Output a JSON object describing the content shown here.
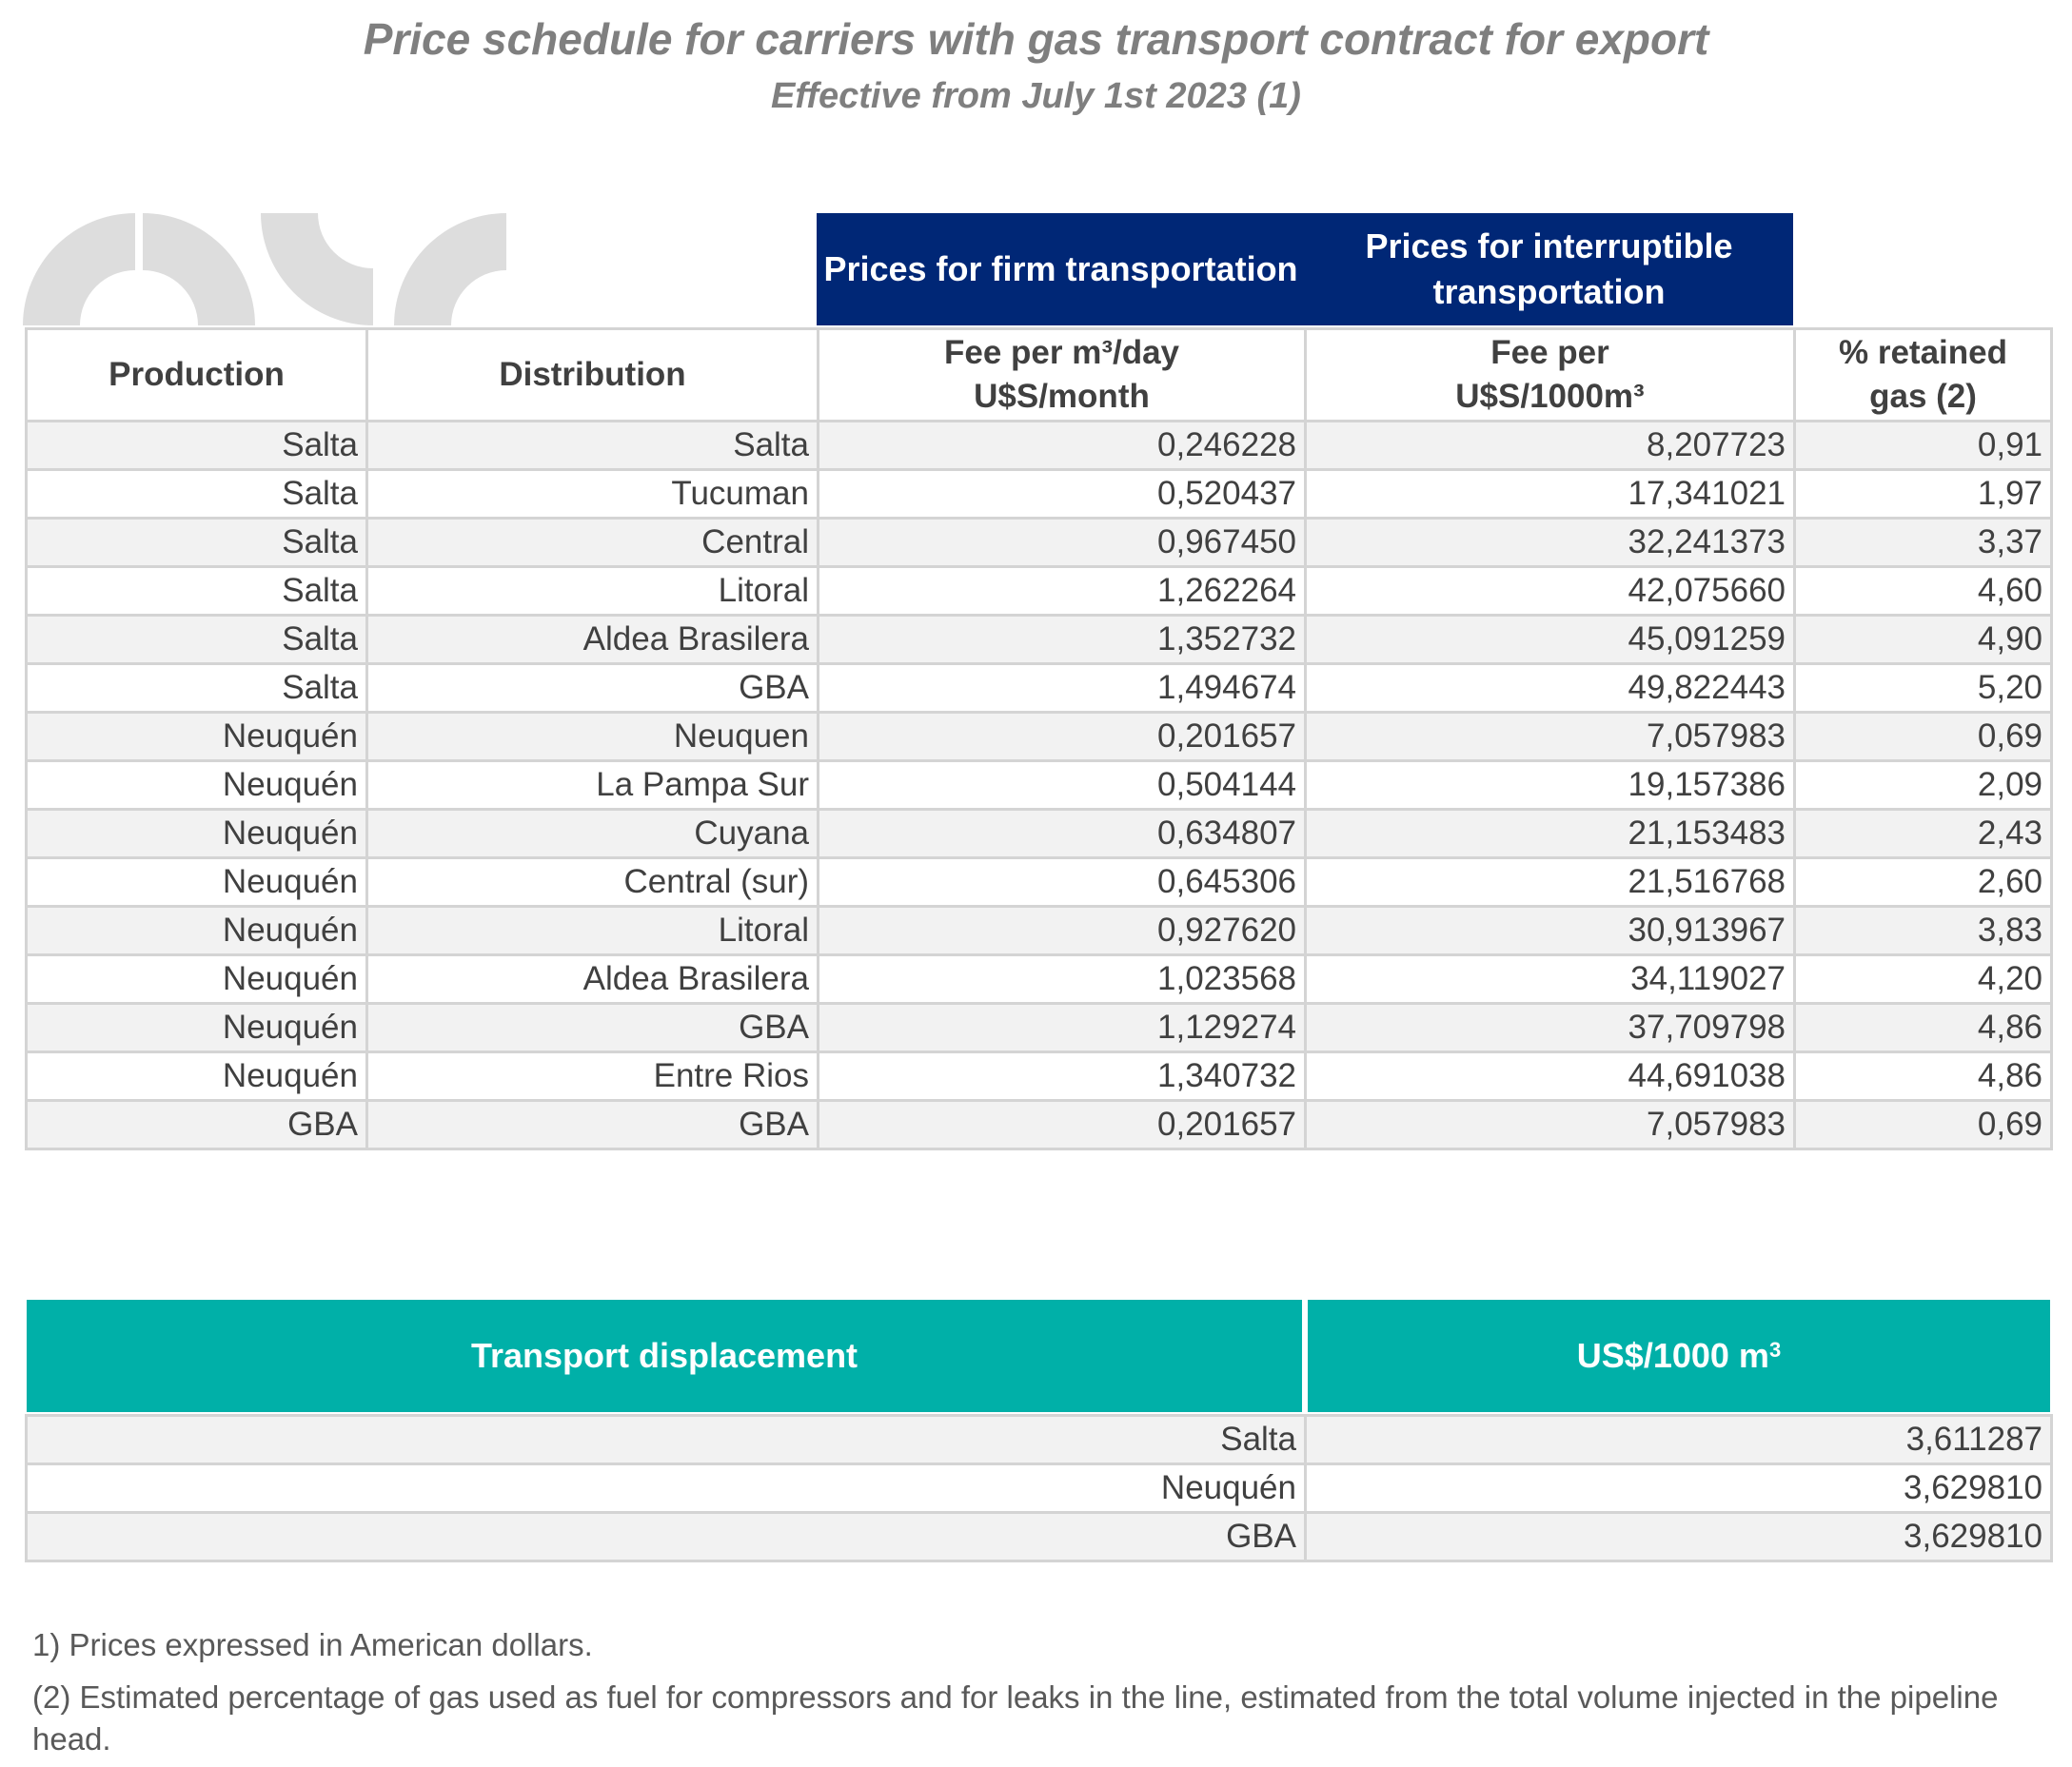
{
  "title": "Price schedule for carriers with gas transport contract for export",
  "subtitle": "Effective from July 1st 2023 (1)",
  "group_headers": {
    "firm": "Prices for firm transportation",
    "interruptible": "Prices for interruptible transportation"
  },
  "columns": {
    "production": "Production",
    "distribution": "Distribution",
    "fee_firm_line1": "Fee per m³/day",
    "fee_firm_line2": "U$S/month",
    "fee_int_line1": "Fee per",
    "fee_int_line2": "U$S/1000m³",
    "retained_line1": "% retained",
    "retained_line2": "gas (2)"
  },
  "rows": [
    {
      "production": "Salta",
      "distribution": "Salta",
      "firm": "0,246228",
      "interruptible": "8,207723",
      "retained": "0,91"
    },
    {
      "production": "Salta",
      "distribution": "Tucuman",
      "firm": "0,520437",
      "interruptible": "17,341021",
      "retained": "1,97"
    },
    {
      "production": "Salta",
      "distribution": "Central",
      "firm": "0,967450",
      "interruptible": "32,241373",
      "retained": "3,37"
    },
    {
      "production": "Salta",
      "distribution": "Litoral",
      "firm": "1,262264",
      "interruptible": "42,075660",
      "retained": "4,60"
    },
    {
      "production": "Salta",
      "distribution": "Aldea Brasilera",
      "firm": "1,352732",
      "interruptible": "45,091259",
      "retained": "4,90"
    },
    {
      "production": "Salta",
      "distribution": "GBA",
      "firm": "1,494674",
      "interruptible": "49,822443",
      "retained": "5,20"
    },
    {
      "production": "Neuquén",
      "distribution": "Neuquen",
      "firm": "0,201657",
      "interruptible": "7,057983",
      "retained": "0,69"
    },
    {
      "production": "Neuquén",
      "distribution": "La Pampa Sur",
      "firm": "0,504144",
      "interruptible": "19,157386",
      "retained": "2,09"
    },
    {
      "production": "Neuquén",
      "distribution": "Cuyana",
      "firm": "0,634807",
      "interruptible": "21,153483",
      "retained": "2,43"
    },
    {
      "production": "Neuquén",
      "distribution": "Central (sur)",
      "firm": "0,645306",
      "interruptible": "21,516768",
      "retained": "2,60"
    },
    {
      "production": "Neuquén",
      "distribution": "Litoral",
      "firm": "0,927620",
      "interruptible": "30,913967",
      "retained": "3,83"
    },
    {
      "production": "Neuquén",
      "distribution": "Aldea Brasilera",
      "firm": "1,023568",
      "interruptible": "34,119027",
      "retained": "4,20"
    },
    {
      "production": "Neuquén",
      "distribution": "GBA",
      "firm": "1,129274",
      "interruptible": "37,709798",
      "retained": "4,86"
    },
    {
      "production": "Neuquén",
      "distribution": "Entre Rios",
      "firm": "1,340732",
      "interruptible": "44,691038",
      "retained": "4,86"
    },
    {
      "production": "GBA",
      "distribution": "GBA",
      "firm": "0,201657",
      "interruptible": "7,057983",
      "retained": "0,69"
    }
  ],
  "displacement": {
    "header_label": "Transport displacement",
    "header_unit": "US$/1000 m",
    "header_unit_sup": "3",
    "rows": [
      {
        "name": "Salta",
        "value": "3,611287"
      },
      {
        "name": "Neuquén",
        "value": "3,629810"
      },
      {
        "name": "GBA",
        "value": "3,629810"
      }
    ]
  },
  "notes": {
    "note1": "1) Prices expressed in American dollars.",
    "note2": "(2) Estimated percentage of gas used as fuel for compressors and for leaks in the line, estimated from the total volume injected in the pipeline head."
  },
  "colors": {
    "navy_header": "#002776",
    "teal_header": "#00b0a8",
    "title_gray": "#7f7f7f",
    "row_shade": "#f2f2f2",
    "border": "#d4d4d4"
  },
  "icons": {
    "logo": "company-logo-arcs"
  }
}
